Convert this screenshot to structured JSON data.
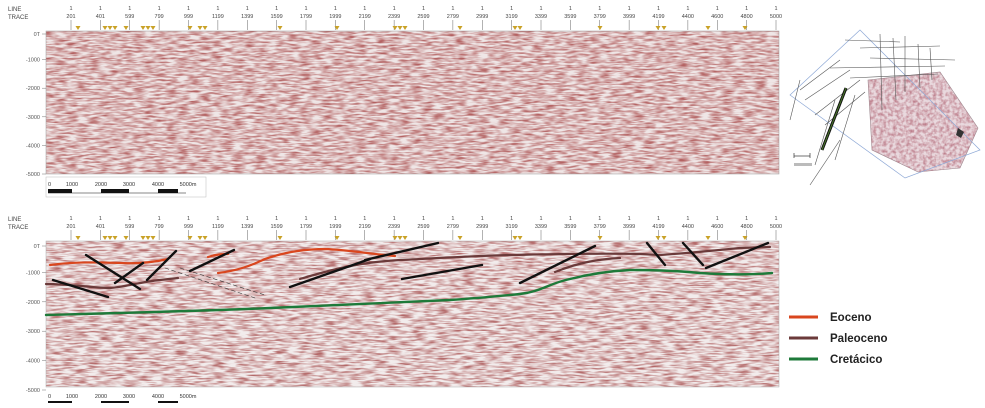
{
  "panels": [
    {
      "id": "top",
      "header": {
        "line": "LINE",
        "trace": "TRACE"
      },
      "trace_numbers": [
        "201",
        "401",
        "599",
        "799",
        "999",
        "1199",
        "1399",
        "1599",
        "1799",
        "1999",
        "2199",
        "2399",
        "2599",
        "2799",
        "2999",
        "3199",
        "3399",
        "3599",
        "3799",
        "3999",
        "4199",
        "4400",
        "4600",
        "4800",
        "5000"
      ],
      "line_numbers": [
        "1",
        "1",
        "1",
        "1",
        "1",
        "1",
        "1",
        "1",
        "1",
        "1",
        "1",
        "1",
        "1",
        "1",
        "1",
        "1",
        "1",
        "1",
        "1",
        "1",
        "1",
        "1",
        "1",
        "1",
        "1"
      ],
      "depth_labels": [
        "0T",
        "-1000",
        "-2000",
        "-3000",
        "-4000",
        "-5000"
      ],
      "scale_labels": [
        "0",
        "1000",
        "2000",
        "3000",
        "4000",
        "5000m"
      ]
    },
    {
      "id": "bottom",
      "header": {
        "line": "LINE",
        "trace": "TRACE"
      },
      "trace_numbers": [
        "201",
        "401",
        "599",
        "799",
        "999",
        "1199",
        "1399",
        "1599",
        "1799",
        "1999",
        "2199",
        "2399",
        "2599",
        "2799",
        "2999",
        "3199",
        "3399",
        "3599",
        "3799",
        "3999",
        "4199",
        "4400",
        "4600",
        "4800",
        "5000"
      ],
      "line_numbers": [
        "1",
        "1",
        "1",
        "1",
        "1",
        "1",
        "1",
        "1",
        "1",
        "1",
        "1",
        "1",
        "1",
        "1",
        "1",
        "1",
        "1",
        "1",
        "1",
        "1",
        "1",
        "1",
        "1",
        "1",
        "1"
      ],
      "depth_labels": [
        "0T",
        "-1000",
        "-2000",
        "-3000",
        "-4000",
        "-5000"
      ],
      "scale_labels": [
        "0",
        "1000",
        "2000",
        "3000",
        "4000",
        "5000m"
      ]
    }
  ],
  "legend": [
    {
      "label": "Eoceno",
      "color": "#d9461e"
    },
    {
      "label": "Paleoceno",
      "color": "#6b3a3a"
    },
    {
      "label": "Cretácico",
      "color": "#1e7a3a"
    }
  ],
  "map_inset": {
    "icon": "base-map-icon"
  },
  "colors": {
    "seismic_dark": "#6e2020",
    "seismic_light": "#e8d7d7",
    "marker": "#c9a227",
    "fault": "#111111"
  }
}
